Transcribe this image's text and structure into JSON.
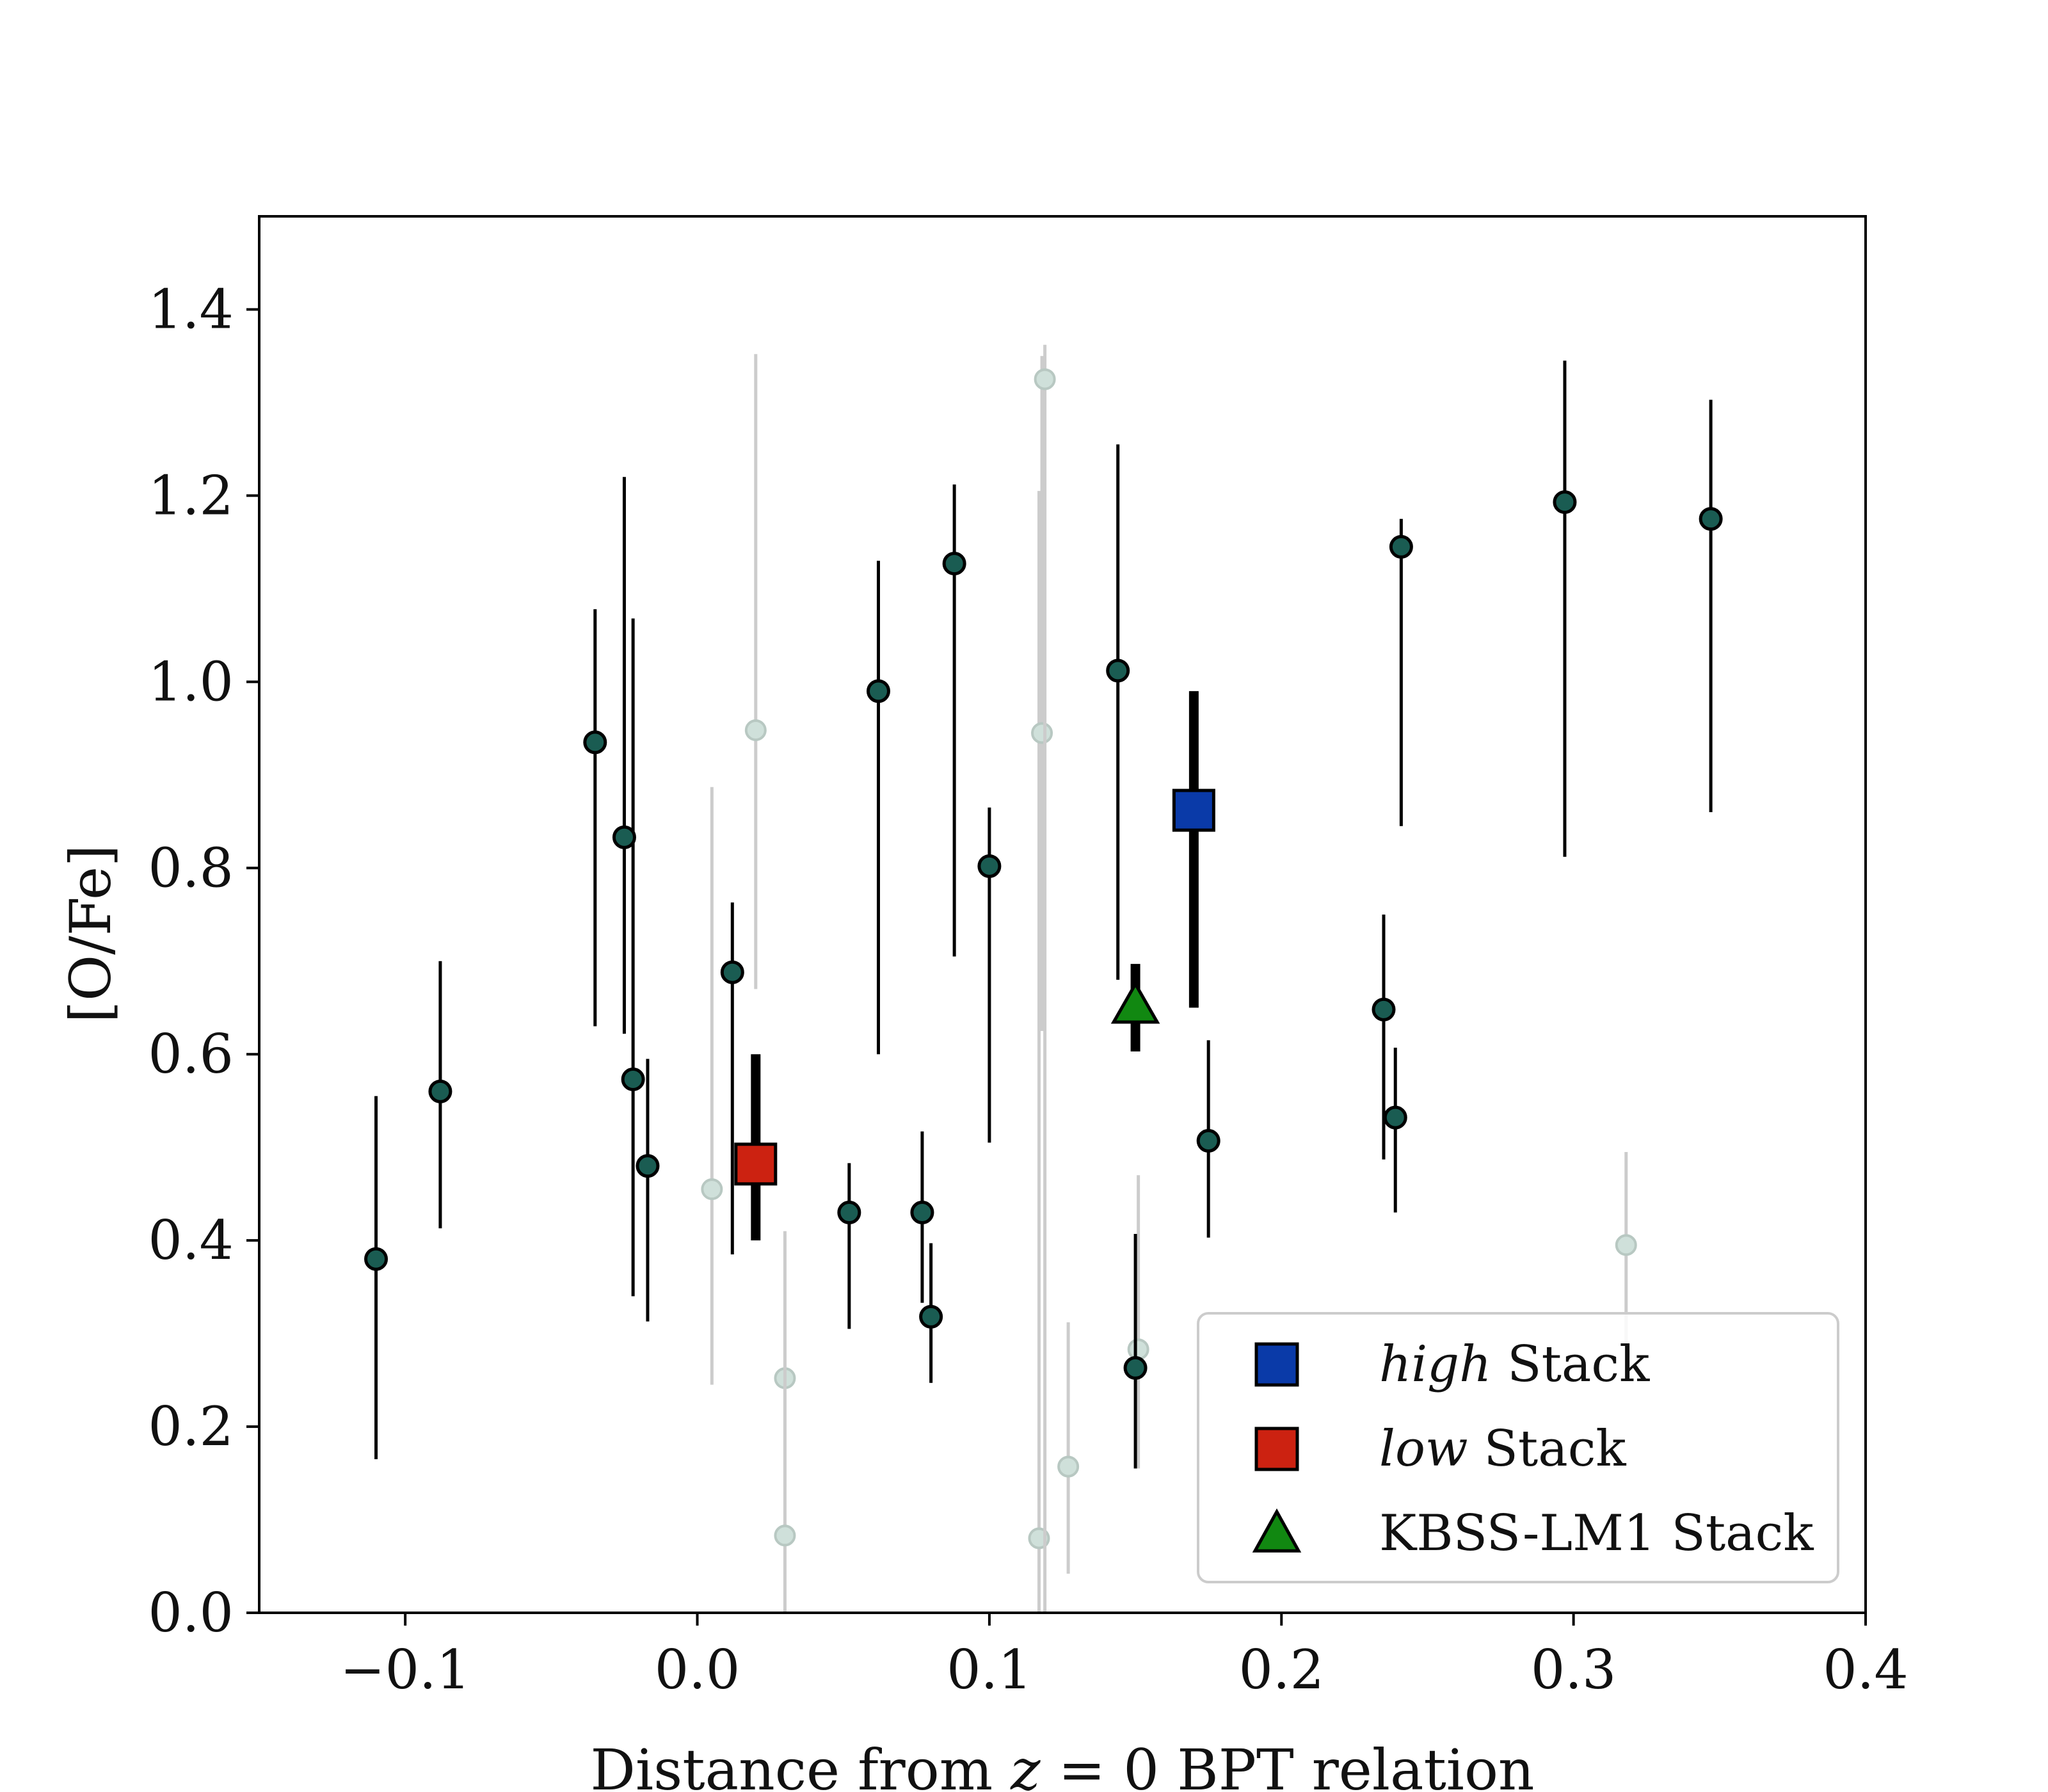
{
  "chart_data": {
    "type": "scatter",
    "title": "",
    "xlabel_parts": [
      "Distance from ",
      "z",
      " = 0 BPT relation"
    ],
    "ylabel": "[O/Fe]",
    "xlim": [
      -0.15,
      0.4
    ],
    "ylim": [
      0.0,
      1.5
    ],
    "x_ticks": [
      -0.1,
      0.0,
      0.1,
      0.2,
      0.3,
      0.4
    ],
    "x_tick_labels": [
      "−0.1",
      "0.0",
      "0.1",
      "0.2",
      "0.3",
      "0.4"
    ],
    "y_ticks": [
      0.0,
      0.2,
      0.4,
      0.6,
      0.8,
      1.0,
      1.2,
      1.4
    ],
    "y_tick_labels": [
      "0.0",
      "0.2",
      "0.4",
      "0.6",
      "0.8",
      "1.0",
      "1.2",
      "1.4"
    ],
    "grid": false,
    "legend_position": "lower-right",
    "colors": {
      "point_fill": "#1a5c52",
      "faded_fill": "#cfe0da",
      "faded_line": "#cccccc",
      "high": "#0a3aa8",
      "low": "#cc2211",
      "kbss": "#118811"
    },
    "series": [
      {
        "role": "detections",
        "points": [
          {
            "x": -0.11,
            "y": 0.38,
            "ylo": 0.165,
            "yhi": 0.555
          },
          {
            "x": -0.088,
            "y": 0.56,
            "ylo": 0.413,
            "yhi": 0.7
          },
          {
            "x": -0.035,
            "y": 0.935,
            "ylo": 0.63,
            "yhi": 1.078
          },
          {
            "x": -0.025,
            "y": 0.833,
            "ylo": 0.622,
            "yhi": 1.22
          },
          {
            "x": -0.022,
            "y": 0.573,
            "ylo": 0.34,
            "yhi": 1.068
          },
          {
            "x": -0.017,
            "y": 0.48,
            "ylo": 0.313,
            "yhi": 0.595
          },
          {
            "x": 0.012,
            "y": 0.688,
            "ylo": 0.385,
            "yhi": 0.763
          },
          {
            "x": 0.052,
            "y": 0.43,
            "ylo": 0.305,
            "yhi": 0.483
          },
          {
            "x": 0.062,
            "y": 0.99,
            "ylo": 0.6,
            "yhi": 1.13
          },
          {
            "x": 0.077,
            "y": 0.43,
            "ylo": 0.333,
            "yhi": 0.517
          },
          {
            "x": 0.08,
            "y": 0.318,
            "ylo": 0.247,
            "yhi": 0.397
          },
          {
            "x": 0.088,
            "y": 1.127,
            "ylo": 0.705,
            "yhi": 1.212
          },
          {
            "x": 0.1,
            "y": 0.802,
            "ylo": 0.505,
            "yhi": 0.865
          },
          {
            "x": 0.144,
            "y": 1.012,
            "ylo": 0.68,
            "yhi": 1.255
          },
          {
            "x": 0.15,
            "y": 0.263,
            "ylo": 0.155,
            "yhi": 0.407
          },
          {
            "x": 0.175,
            "y": 0.507,
            "ylo": 0.403,
            "yhi": 0.615
          },
          {
            "x": 0.235,
            "y": 0.648,
            "ylo": 0.487,
            "yhi": 0.75
          },
          {
            "x": 0.239,
            "y": 0.532,
            "ylo": 0.43,
            "yhi": 0.607
          },
          {
            "x": 0.241,
            "y": 1.145,
            "ylo": 0.845,
            "yhi": 1.175
          },
          {
            "x": 0.297,
            "y": 1.193,
            "ylo": 0.812,
            "yhi": 1.345
          },
          {
            "x": 0.347,
            "y": 1.175,
            "ylo": 0.86,
            "yhi": 1.303
          }
        ]
      },
      {
        "role": "faded",
        "points": [
          {
            "x": 0.005,
            "y": 0.455,
            "ylo": 0.245,
            "yhi": 0.887
          },
          {
            "x": 0.02,
            "y": 0.948,
            "ylo": 0.67,
            "yhi": 1.352
          },
          {
            "x": 0.03,
            "y": 0.252,
            "ylo": 0.135,
            "yhi": 0.41
          },
          {
            "x": 0.03,
            "y": 0.083,
            "ylo": 0.0,
            "yhi": 0.32
          },
          {
            "x": 0.117,
            "y": 0.08,
            "ylo": 0.0,
            "yhi": 1.205
          },
          {
            "x": 0.118,
            "y": 0.945,
            "ylo": 0.625,
            "yhi": 1.35
          },
          {
            "x": 0.119,
            "y": 1.325,
            "ylo": 0.0,
            "yhi": 1.362
          },
          {
            "x": 0.127,
            "y": 0.157,
            "ylo": 0.042,
            "yhi": 0.312
          },
          {
            "x": 0.151,
            "y": 0.283,
            "ylo": 0.155,
            "yhi": 0.47
          },
          {
            "x": 0.318,
            "y": 0.395,
            "ylo": 0.25,
            "yhi": 0.495
          }
        ]
      },
      {
        "name_parts": [
          "high",
          " Stack"
        ],
        "marker": "square",
        "color": "#0a3aa8",
        "points": [
          {
            "x": 0.17,
            "y": 0.862,
            "ylo": 0.65,
            "yhi": 0.99
          }
        ]
      },
      {
        "name_parts": [
          "low",
          " Stack"
        ],
        "marker": "square",
        "color": "#cc2211",
        "points": [
          {
            "x": 0.02,
            "y": 0.482,
            "ylo": 0.4,
            "yhi": 0.6
          }
        ]
      },
      {
        "name": "KBSS-LM1 Stack",
        "marker": "triangle",
        "color": "#118811",
        "points": [
          {
            "x": 0.15,
            "y": 0.652,
            "ylo": 0.603,
            "yhi": 0.697
          }
        ]
      }
    ]
  }
}
